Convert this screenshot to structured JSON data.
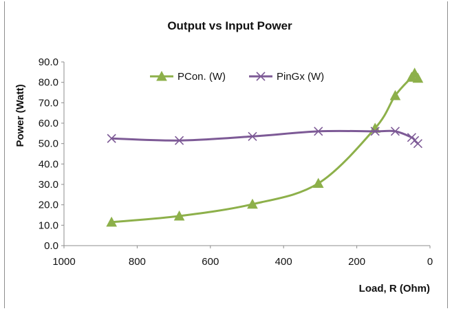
{
  "chart_data": {
    "type": "line",
    "title": "Output vs Input Power",
    "xlabel": "Load, R (Ohm)",
    "ylabel": "Power (Watt)",
    "xlim": [
      1000,
      0
    ],
    "ylim": [
      0,
      90
    ],
    "x_reversed": true,
    "x_ticks": [
      "1000",
      "800",
      "600",
      "400",
      "200",
      "0"
    ],
    "y_ticks": [
      "0.0",
      "10.0",
      "20.0",
      "30.0",
      "40.0",
      "50.0",
      "60.0",
      "70.0",
      "80.0",
      "90.0"
    ],
    "grid": false,
    "legend_position": "top",
    "series": [
      {
        "name": "PCon. (W)",
        "marker": "triangle",
        "color": "#8db04a",
        "x": [
          870,
          685,
          485,
          305,
          150,
          95,
          50,
          42,
          33
        ],
        "y": [
          11.5,
          14.5,
          20.3,
          30.5,
          57.5,
          73.5,
          82.5,
          84.5,
          82.0
        ]
      },
      {
        "name": "PinGx (W)",
        "marker": "x",
        "color": "#7d5a96",
        "x": [
          870,
          685,
          485,
          305,
          150,
          95,
          50,
          42,
          33
        ],
        "y": [
          52.5,
          51.5,
          53.5,
          56.0,
          56.0,
          56.0,
          53.0,
          51.5,
          50.0
        ]
      }
    ]
  }
}
